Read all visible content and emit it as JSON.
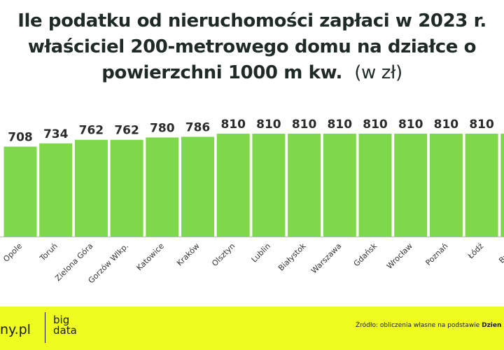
{
  "title": {
    "line1": "Ile podatku od nieruchomości zapłaci w 2023 r.",
    "line2": "właściciel 200-metrowego domu na działce o",
    "line3": "powierzchni 1000 m kw.",
    "unit": "(w zł)"
  },
  "chart_data": {
    "type": "bar",
    "title": "Ile podatku od nieruchomości zapłaci w 2023 r. właściciel 200-metrowego domu na działce o powierzchni 1000 m kw. (w zł)",
    "categories": [
      "Opole",
      "Toruń",
      "Zielona Góra",
      "Gorzów Wlkp.",
      "Katowice",
      "Kraków",
      "Olsztyn",
      "Lublin",
      "Białystok",
      "Warszawa",
      "Gdańsk",
      "Wrocław",
      "Poznań",
      "Łódź",
      "Bydgo"
    ],
    "values": [
      708,
      734,
      762,
      762,
      780,
      786,
      810,
      810,
      810,
      810,
      810,
      810,
      810,
      810,
      810
    ],
    "xlabel": "",
    "ylabel": "",
    "ylim": [
      0,
      810
    ],
    "bar_color": "#7fd84a",
    "label_color": "#2a2a2a",
    "grid": false,
    "axis_line_color": "#bbbbbb"
  },
  "footer": {
    "logo_text": "ny.pl",
    "logo_big_line1": "big",
    "logo_big_line2": "data",
    "source_prefix": "Źródło: obliczenia własne na podstawie ",
    "source_bold": "Dzien",
    "background": "#eefc1f"
  }
}
